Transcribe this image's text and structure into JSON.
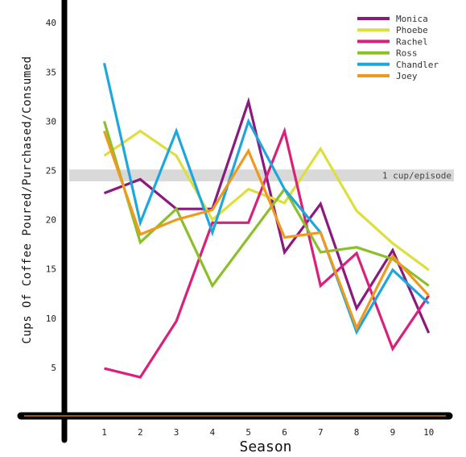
{
  "chart_data": {
    "type": "line",
    "title": "",
    "xlabel": "Season",
    "ylabel": "Cups Of Coffee Poured/Purchased/Consumed",
    "x": [
      1,
      2,
      3,
      4,
      5,
      6,
      7,
      8,
      9,
      10
    ],
    "xlim": [
      0.2,
      10.5
    ],
    "ylim": [
      0,
      43
    ],
    "yticks": [
      5,
      10,
      15,
      20,
      25,
      30,
      35,
      40
    ],
    "grid": false,
    "legend": "top-right",
    "reference_band": {
      "label": "1 cup/episode",
      "y_low": 23.9,
      "y_high": 25.1,
      "color": "#d9d9d9"
    },
    "series": [
      {
        "name": "Monica",
        "color": "#8b1a7e",
        "values": [
          22.7,
          24.1,
          21.1,
          21.1,
          32.0,
          16.7,
          21.6,
          11.0,
          16.9,
          8.5
        ]
      },
      {
        "name": "Phoebe",
        "color": "#dede3c",
        "values": [
          26.5,
          29.0,
          26.5,
          20.0,
          23.1,
          21.7,
          27.2,
          20.9,
          17.6,
          14.9
        ]
      },
      {
        "name": "Rachel",
        "color": "#d9207a",
        "values": [
          4.9,
          4.0,
          9.7,
          19.7,
          19.7,
          29.0,
          13.3,
          16.6,
          6.9,
          12.3
        ]
      },
      {
        "name": "Ross",
        "color": "#8cc02a",
        "values": [
          30.0,
          17.7,
          21.1,
          13.3,
          18.2,
          23.1,
          16.7,
          17.2,
          16.0,
          13.3
        ]
      },
      {
        "name": "Chandler",
        "color": "#1ea7dc",
        "values": [
          35.9,
          19.7,
          29.0,
          18.7,
          30.0,
          23.1,
          18.7,
          8.6,
          14.9,
          11.5
        ]
      },
      {
        "name": "Joey",
        "color": "#ef9a1e",
        "values": [
          29.0,
          18.5,
          20.0,
          21.0,
          27.0,
          18.2,
          18.7,
          9.0,
          16.3,
          12.3
        ]
      }
    ]
  }
}
